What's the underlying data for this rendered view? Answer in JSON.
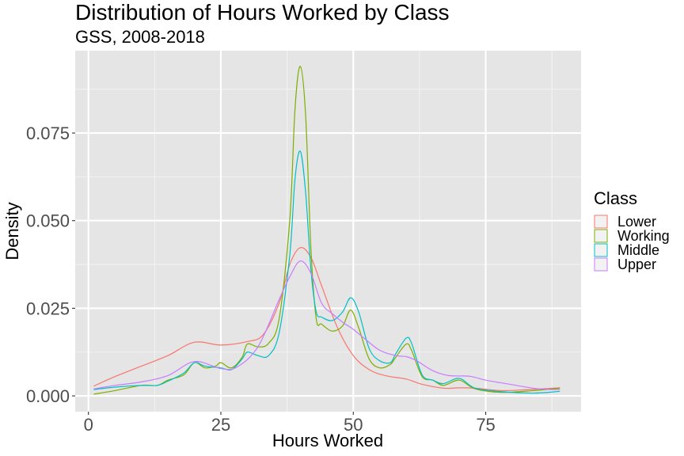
{
  "chart_data": {
    "type": "line",
    "subtype": "density",
    "title": "Distribution of Hours Worked by Class",
    "subtitle": "GSS, 2008-2018",
    "xlabel": "Hours Worked",
    "ylabel": "Density",
    "xlim": [
      -2.5,
      93
    ],
    "ylim": [
      -0.0045,
      0.0985
    ],
    "x_ticks": [
      0,
      25,
      50,
      75
    ],
    "x_tick_labels": [
      "0",
      "25",
      "50",
      "75"
    ],
    "y_ticks": [
      0.0,
      0.025,
      0.05,
      0.075
    ],
    "y_tick_labels": [
      "0.000",
      "0.025",
      "0.050",
      "0.075"
    ],
    "grid": true,
    "legend": {
      "title": "Class",
      "position": "right"
    },
    "series": [
      {
        "name": "Lower",
        "color": "#F8766D",
        "points": [
          [
            1,
            0.0028
          ],
          [
            5,
            0.0055
          ],
          [
            10,
            0.0085
          ],
          [
            15,
            0.0115
          ],
          [
            20,
            0.0153
          ],
          [
            25,
            0.0145
          ],
          [
            30,
            0.0155
          ],
          [
            33,
            0.0175
          ],
          [
            36,
            0.0265
          ],
          [
            38,
            0.0375
          ],
          [
            40,
            0.0423
          ],
          [
            42,
            0.0395
          ],
          [
            44,
            0.0315
          ],
          [
            47,
            0.0195
          ],
          [
            50,
            0.0115
          ],
          [
            53,
            0.0075
          ],
          [
            56,
            0.0058
          ],
          [
            60,
            0.0048
          ],
          [
            63,
            0.0033
          ],
          [
            67,
            0.0022
          ],
          [
            70,
            0.0023
          ],
          [
            73,
            0.0022
          ],
          [
            78,
            0.0015
          ],
          [
            83,
            0.0018
          ],
          [
            89,
            0.0023
          ]
        ]
      },
      {
        "name": "Working",
        "color": "#7CAE00",
        "points": [
          [
            1,
            0.0005
          ],
          [
            5,
            0.0015
          ],
          [
            10,
            0.003
          ],
          [
            13,
            0.003
          ],
          [
            15,
            0.0045
          ],
          [
            18,
            0.006
          ],
          [
            20,
            0.0095
          ],
          [
            22,
            0.008
          ],
          [
            24,
            0.0085
          ],
          [
            25,
            0.0095
          ],
          [
            27,
            0.008
          ],
          [
            29,
            0.011
          ],
          [
            30,
            0.0148
          ],
          [
            32,
            0.014
          ],
          [
            34,
            0.015
          ],
          [
            36,
            0.022
          ],
          [
            38,
            0.05
          ],
          [
            39,
            0.082
          ],
          [
            40,
            0.094
          ],
          [
            41,
            0.08
          ],
          [
            42,
            0.042
          ],
          [
            43,
            0.022
          ],
          [
            44,
            0.0205
          ],
          [
            46,
            0.0185
          ],
          [
            48,
            0.02
          ],
          [
            49.5,
            0.0245
          ],
          [
            51,
            0.0195
          ],
          [
            53,
            0.0105
          ],
          [
            55,
            0.008
          ],
          [
            57,
            0.009
          ],
          [
            58,
            0.011
          ],
          [
            60,
            0.0148
          ],
          [
            61,
            0.013
          ],
          [
            63,
            0.0055
          ],
          [
            65,
            0.0045
          ],
          [
            67,
            0.003
          ],
          [
            70,
            0.0045
          ],
          [
            73,
            0.002
          ],
          [
            78,
            0.001
          ],
          [
            84,
            0.0015
          ],
          [
            89,
            0.0022
          ]
        ]
      },
      {
        "name": "Middle",
        "color": "#00BFC4",
        "points": [
          [
            1,
            0.0018
          ],
          [
            5,
            0.0025
          ],
          [
            10,
            0.003
          ],
          [
            13,
            0.003
          ],
          [
            15,
            0.0042
          ],
          [
            18,
            0.0065
          ],
          [
            20,
            0.0095
          ],
          [
            22,
            0.0085
          ],
          [
            25,
            0.008
          ],
          [
            27,
            0.0075
          ],
          [
            29,
            0.0105
          ],
          [
            30,
            0.0125
          ],
          [
            32,
            0.0115
          ],
          [
            34,
            0.0115
          ],
          [
            36,
            0.018
          ],
          [
            38,
            0.04
          ],
          [
            39,
            0.062
          ],
          [
            40,
            0.0698
          ],
          [
            41,
            0.058
          ],
          [
            42,
            0.036
          ],
          [
            43,
            0.024
          ],
          [
            44,
            0.0225
          ],
          [
            46,
            0.0215
          ],
          [
            48,
            0.024
          ],
          [
            49.5,
            0.028
          ],
          [
            51,
            0.024
          ],
          [
            53,
            0.0135
          ],
          [
            55,
            0.01
          ],
          [
            57,
            0.0095
          ],
          [
            58,
            0.012
          ],
          [
            60,
            0.0165
          ],
          [
            61,
            0.015
          ],
          [
            63,
            0.006
          ],
          [
            65,
            0.0045
          ],
          [
            67,
            0.0035
          ],
          [
            70,
            0.005
          ],
          [
            73,
            0.0022
          ],
          [
            78,
            0.0012
          ],
          [
            84,
            0.0008
          ],
          [
            89,
            0.0013
          ]
        ]
      },
      {
        "name": "Upper",
        "color": "#C77CFF",
        "points": [
          [
            1,
            0.002
          ],
          [
            5,
            0.003
          ],
          [
            10,
            0.004
          ],
          [
            15,
            0.0058
          ],
          [
            20,
            0.0098
          ],
          [
            25,
            0.0078
          ],
          [
            28,
            0.0082
          ],
          [
            32,
            0.014
          ],
          [
            36,
            0.0275
          ],
          [
            38,
            0.034
          ],
          [
            40,
            0.0385
          ],
          [
            42,
            0.035
          ],
          [
            44,
            0.0265
          ],
          [
            46,
            0.0235
          ],
          [
            48,
            0.021
          ],
          [
            50,
            0.019
          ],
          [
            52,
            0.0165
          ],
          [
            55,
            0.013
          ],
          [
            58,
            0.0115
          ],
          [
            60,
            0.0112
          ],
          [
            62,
            0.01
          ],
          [
            65,
            0.0072
          ],
          [
            68,
            0.0058
          ],
          [
            72,
            0.0056
          ],
          [
            75,
            0.0045
          ],
          [
            80,
            0.0032
          ],
          [
            85,
            0.002
          ],
          [
            89,
            0.0018
          ]
        ]
      }
    ]
  }
}
